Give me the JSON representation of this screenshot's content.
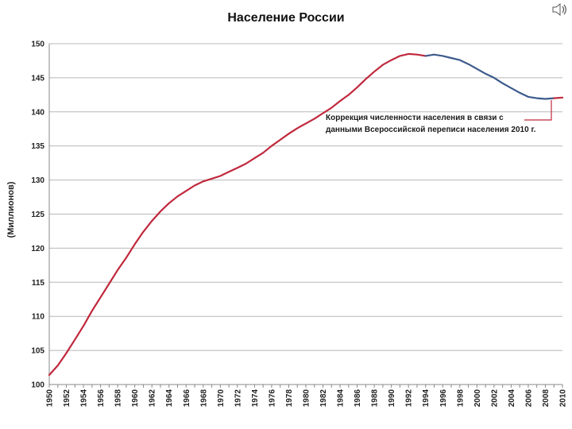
{
  "chart_data": {
    "type": "line",
    "title": "Население России",
    "ylabel": "(Миллионов)",
    "xlabel": "",
    "ylim": [
      100,
      150
    ],
    "yticks": [
      100,
      105,
      110,
      115,
      120,
      125,
      130,
      135,
      140,
      145,
      150
    ],
    "xlim": [
      1950,
      2010
    ],
    "xtick_labels": [
      "1950",
      "1952",
      "1954",
      "1956",
      "1958",
      "1960",
      "1962",
      "1964",
      "1966",
      "1968",
      "1970",
      "1972",
      "1974",
      "1976",
      "1978",
      "1980",
      "1982",
      "1984",
      "1986",
      "1988",
      "1990",
      "1992",
      "1994",
      "1996",
      "1998",
      "2000",
      "2002",
      "2004",
      "2006",
      "2008",
      "2010"
    ],
    "grid": true,
    "annotation": {
      "lines": [
        "Коррекция численности населения в связи с",
        "данными Всероссийской переписи населения 2010 г."
      ]
    },
    "series": [
      {
        "color": "#c0283c",
        "x": [
          1950,
          1951,
          1952,
          1953,
          1954,
          1955,
          1956,
          1957,
          1958,
          1959,
          1960,
          1961,
          1962,
          1963,
          1964,
          1965,
          1966,
          1967,
          1968,
          1969,
          1970,
          1971,
          1972,
          1973,
          1974,
          1975,
          1976,
          1977,
          1978,
          1979,
          1980,
          1981,
          1982,
          1983,
          1984,
          1985,
          1986,
          1987,
          1988,
          1989,
          1990,
          1991,
          1992,
          1993,
          1994
        ],
        "y": [
          101.4,
          102.8,
          104.6,
          106.6,
          108.6,
          110.8,
          112.8,
          114.8,
          116.8,
          118.6,
          120.6,
          122.4,
          124.0,
          125.4,
          126.6,
          127.6,
          128.4,
          129.2,
          129.8,
          130.2,
          130.6,
          131.2,
          131.8,
          132.4,
          133.2,
          134.0,
          135.0,
          135.9,
          136.8,
          137.6,
          138.3,
          139.0,
          139.8,
          140.6,
          141.6,
          142.5,
          143.6,
          144.8,
          145.9,
          146.9,
          147.6,
          148.2,
          148.5,
          148.4,
          148.2
        ]
      },
      {
        "color": "#3c5a8c",
        "x": [
          1994,
          1995,
          1996,
          1997,
          1998,
          1999,
          2000,
          2001,
          2002,
          2003,
          2004,
          2005,
          2006,
          2007,
          2008,
          2009
        ],
        "y": [
          148.2,
          148.4,
          148.2,
          147.9,
          147.6,
          147.0,
          146.3,
          145.6,
          145.0,
          144.2,
          143.5,
          142.8,
          142.2,
          142.0,
          141.9,
          142.0
        ]
      },
      {
        "color": "#c0283c",
        "x": [
          2009,
          2010
        ],
        "y": [
          142.0,
          142.1
        ]
      }
    ]
  }
}
